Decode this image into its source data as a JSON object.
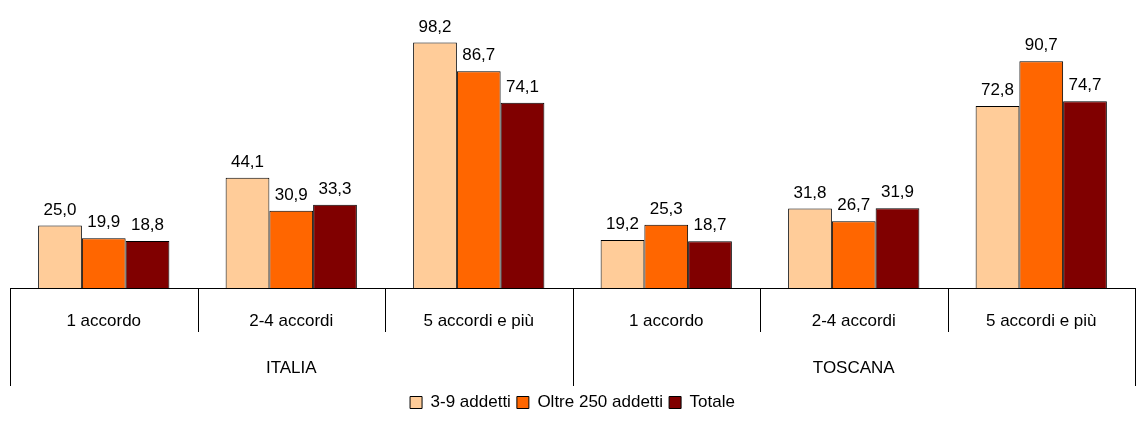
{
  "chart_data": {
    "type": "bar",
    "categories": [
      "1 accordo",
      "2-4 accordi",
      "5 accordi e più",
      "1 accordo",
      "2-4 accordi",
      "5 accordi e più"
    ],
    "series": [
      {
        "name": "3-9 addetti",
        "color": "#ffcc99",
        "values": [
          25.0,
          44.1,
          98.2,
          19.2,
          31.8,
          72.8
        ],
        "value_labels": [
          "25,0",
          "44,1",
          "98,2",
          "19,2",
          "31,8",
          "72,8"
        ]
      },
      {
        "name": "Oltre 250 addetti",
        "color": "#ff6600",
        "values": [
          19.9,
          30.9,
          86.7,
          25.3,
          26.7,
          90.7
        ],
        "value_labels": [
          "19,9",
          "30,9",
          "86,7",
          "25,3",
          "26,7",
          "90,7"
        ]
      },
      {
        "name": "Totale",
        "color": "#800000",
        "values": [
          18.8,
          33.3,
          74.1,
          18.7,
          31.9,
          74.7
        ],
        "value_labels": [
          "18,8",
          "33,3",
          "74,1",
          "18,7",
          "31,9",
          "74,7"
        ]
      }
    ],
    "annotations": [
      "ITALIA",
      "TOSCANA"
    ],
    "legend": "bottom"
  }
}
